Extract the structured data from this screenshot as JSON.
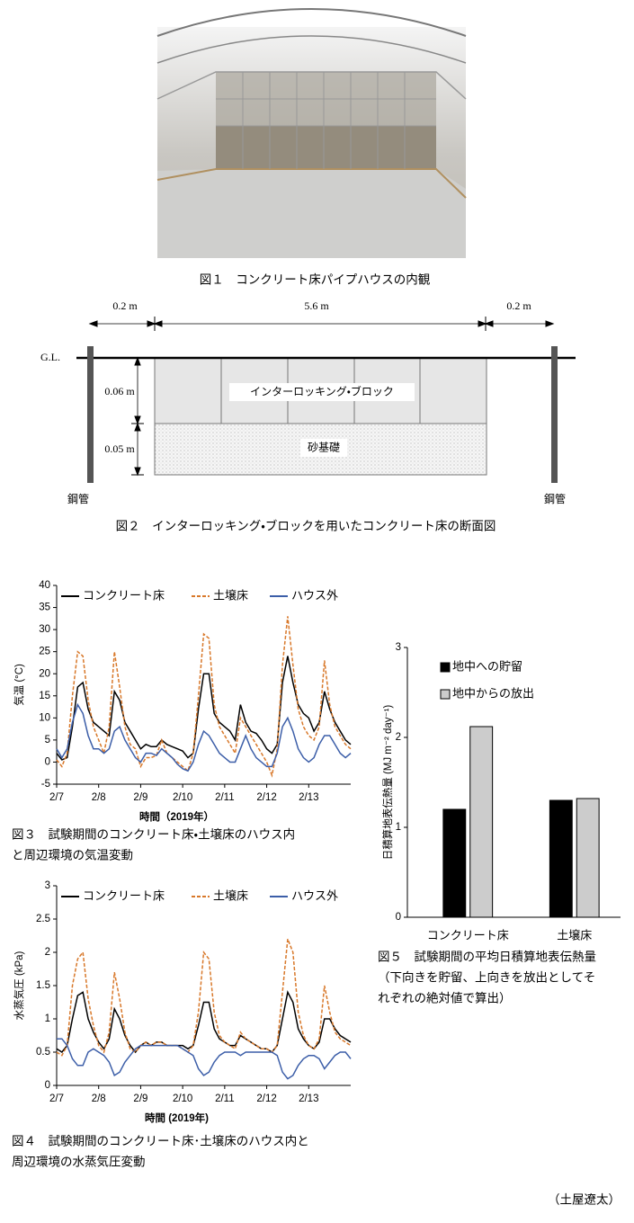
{
  "figure1": {
    "caption": "図１　コンクリート床パイプハウスの内観"
  },
  "figure2": {
    "dimensions": [
      "0.2 m",
      "5.6 m",
      "0.2 m"
    ],
    "ground_label": "G.L.",
    "depths": [
      "0.06 m",
      "0.05 m"
    ],
    "layers": [
      "インターロッキング・ブロック",
      "砂基礎"
    ],
    "pipes": [
      "鋼管",
      "鋼管"
    ],
    "caption": "図２　インターロッキング・ブロックを用いたコンクリート床の断面図"
  },
  "chart_data": [
    {
      "type": "line",
      "ylabel": "気温 (°C)",
      "xlabel": "時間（2019年）",
      "caption": [
        "図３　試験期間のコンクリート床・土壌床のハウス内",
        "と周辺環境の気温変動"
      ],
      "xlim": [
        0,
        7
      ],
      "xticks": [
        {
          "value": 0,
          "label": "2/7"
        },
        {
          "value": 1,
          "label": "2/8"
        },
        {
          "value": 2,
          "label": "2/9"
        },
        {
          "value": 3,
          "label": "2/10"
        },
        {
          "value": 4,
          "label": "2/11"
        },
        {
          "value": 5,
          "label": "2/12"
        },
        {
          "value": 6,
          "label": "2/13"
        }
      ],
      "ylim": [
        -5,
        40
      ],
      "yticks": [
        -5,
        0,
        5,
        10,
        15,
        20,
        25,
        30,
        35,
        40
      ],
      "x": [
        0,
        0.125,
        0.25,
        0.375,
        0.5,
        0.625,
        0.75,
        0.875,
        1,
        1.125,
        1.25,
        1.375,
        1.5,
        1.625,
        1.75,
        1.875,
        2,
        2.125,
        2.25,
        2.375,
        2.5,
        2.625,
        2.75,
        2.875,
        3,
        3.125,
        3.25,
        3.375,
        3.5,
        3.625,
        3.75,
        3.875,
        4,
        4.125,
        4.25,
        4.375,
        4.5,
        4.625,
        4.75,
        4.875,
        5,
        5.125,
        5.25,
        5.375,
        5.5,
        5.625,
        5.75,
        5.875,
        6,
        6.125,
        6.25,
        6.375,
        6.5,
        6.625,
        6.75,
        6.875,
        7
      ],
      "series": [
        {
          "name": "コンクリート床",
          "color": "#000000",
          "dashed": false,
          "values": [
            2,
            0.5,
            1,
            8,
            17,
            18,
            12,
            9,
            8,
            7,
            6,
            16,
            14,
            9,
            7,
            5,
            3,
            4,
            3.5,
            3.5,
            5,
            4,
            3.5,
            3,
            2.5,
            1,
            2,
            12,
            20,
            20,
            11,
            9,
            8,
            7,
            5,
            13,
            9,
            7,
            6.5,
            5,
            3,
            2,
            4,
            18,
            24,
            18,
            13,
            11,
            10,
            7,
            9,
            16,
            12,
            9,
            7,
            5,
            4
          ]
        },
        {
          "name": "土壌床",
          "color": "#d8782a",
          "dashed": true,
          "values": [
            0.5,
            -1,
            2,
            15,
            25,
            24,
            14,
            8,
            5,
            2,
            8,
            25,
            17,
            8,
            4,
            3,
            -1,
            1,
            1,
            1.5,
            5,
            2,
            1,
            0,
            -1,
            -2,
            2,
            15,
            29,
            28,
            13,
            8,
            6,
            4,
            2,
            10,
            8,
            6,
            4,
            2,
            0,
            -3,
            3,
            22,
            33,
            22,
            12,
            8,
            6,
            5,
            8,
            23,
            13,
            8,
            6,
            4,
            3
          ]
        },
        {
          "name": "ハウス外",
          "color": "#3c5ea8",
          "dashed": false,
          "values": [
            3,
            1,
            3,
            9,
            13,
            11,
            6,
            3,
            3,
            2,
            3,
            7,
            8,
            5,
            3,
            1,
            0,
            2,
            2,
            1.5,
            3,
            2,
            1,
            -0.5,
            -1.5,
            -2,
            0,
            4,
            7,
            6,
            4,
            2,
            1,
            0,
            0,
            3,
            6,
            3,
            1,
            0,
            -1,
            -1,
            2,
            8,
            10,
            7,
            3,
            1,
            0,
            1,
            4,
            6,
            6,
            4,
            2,
            1,
            2
          ]
        }
      ]
    },
    {
      "type": "line",
      "ylabel": "水蒸気圧 (kPa)",
      "xlabel": "時間 (2019年)",
      "caption": [
        "図４　試験期間のコンクリート床･土壌床のハウス内と",
        "周辺環境の水蒸気圧変動"
      ],
      "xlim": [
        0,
        7
      ],
      "xticks": [
        {
          "value": 0,
          "label": "2/7"
        },
        {
          "value": 1,
          "label": "2/8"
        },
        {
          "value": 2,
          "label": "2/9"
        },
        {
          "value": 3,
          "label": "2/10"
        },
        {
          "value": 4,
          "label": "2/11"
        },
        {
          "value": 5,
          "label": "2/12"
        },
        {
          "value": 6,
          "label": "2/13"
        }
      ],
      "ylim": [
        0,
        3
      ],
      "yticks": [
        0,
        0.5,
        1,
        1.5,
        2,
        2.5,
        3
      ],
      "x": [
        0,
        0.125,
        0.25,
        0.375,
        0.5,
        0.625,
        0.75,
        0.875,
        1,
        1.125,
        1.25,
        1.375,
        1.5,
        1.625,
        1.75,
        1.875,
        2,
        2.125,
        2.25,
        2.375,
        2.5,
        2.625,
        2.75,
        2.875,
        3,
        3.125,
        3.25,
        3.375,
        3.5,
        3.625,
        3.75,
        3.875,
        4,
        4.125,
        4.25,
        4.375,
        4.5,
        4.625,
        4.75,
        4.875,
        5,
        5.125,
        5.25,
        5.375,
        5.5,
        5.625,
        5.75,
        5.875,
        6,
        6.125,
        6.25,
        6.375,
        6.5,
        6.625,
        6.75,
        6.875,
        7
      ],
      "series": [
        {
          "name": "コンクリート床",
          "color": "#000000",
          "dashed": false,
          "values": [
            0.55,
            0.5,
            0.6,
            1.0,
            1.35,
            1.4,
            1.0,
            0.8,
            0.65,
            0.55,
            0.7,
            1.15,
            1.0,
            0.75,
            0.6,
            0.5,
            0.6,
            0.65,
            0.6,
            0.65,
            0.65,
            0.6,
            0.6,
            0.6,
            0.6,
            0.55,
            0.6,
            0.9,
            1.25,
            1.25,
            0.85,
            0.7,
            0.65,
            0.6,
            0.6,
            0.75,
            0.7,
            0.65,
            0.6,
            0.55,
            0.55,
            0.5,
            0.6,
            1.0,
            1.4,
            1.25,
            0.85,
            0.7,
            0.6,
            0.55,
            0.65,
            1.0,
            1.0,
            0.85,
            0.75,
            0.7,
            0.65
          ]
        },
        {
          "name": "土壌床",
          "color": "#d8782a",
          "dashed": true,
          "values": [
            0.5,
            0.45,
            0.6,
            1.5,
            1.9,
            2.0,
            1.3,
            0.9,
            0.6,
            0.5,
            0.8,
            1.7,
            1.3,
            0.8,
            0.55,
            0.5,
            0.6,
            0.65,
            0.6,
            0.65,
            0.65,
            0.6,
            0.6,
            0.6,
            0.55,
            0.5,
            0.6,
            1.1,
            2.0,
            1.9,
            1.1,
            0.75,
            0.65,
            0.6,
            0.55,
            0.8,
            0.7,
            0.65,
            0.6,
            0.55,
            0.55,
            0.5,
            0.6,
            1.4,
            2.2,
            2.0,
            1.1,
            0.75,
            0.6,
            0.55,
            0.7,
            1.5,
            1.1,
            0.8,
            0.7,
            0.65,
            0.6
          ]
        },
        {
          "name": "ハウス外",
          "color": "#3c5ea8",
          "dashed": false,
          "values": [
            0.7,
            0.7,
            0.6,
            0.4,
            0.3,
            0.3,
            0.5,
            0.55,
            0.5,
            0.45,
            0.35,
            0.15,
            0.2,
            0.35,
            0.45,
            0.55,
            0.6,
            0.6,
            0.6,
            0.6,
            0.6,
            0.6,
            0.6,
            0.6,
            0.55,
            0.5,
            0.45,
            0.25,
            0.15,
            0.2,
            0.35,
            0.45,
            0.5,
            0.5,
            0.5,
            0.45,
            0.5,
            0.5,
            0.5,
            0.5,
            0.5,
            0.5,
            0.45,
            0.2,
            0.1,
            0.15,
            0.3,
            0.4,
            0.45,
            0.45,
            0.4,
            0.25,
            0.35,
            0.45,
            0.5,
            0.5,
            0.4
          ]
        }
      ]
    },
    {
      "type": "bar",
      "ylabel": "日積算地表伝熱量 (MJ m⁻² day⁻¹)",
      "caption": [
        "図５　試験期間の平均日積算地表伝熱量",
        "（下向きを貯留、上向きを放出としてそ",
        "れぞれの絶対値で算出）"
      ],
      "categories": [
        "コンクリート床",
        "土壌床"
      ],
      "ylim": [
        0,
        3
      ],
      "yticks": [
        0,
        1,
        2,
        3
      ],
      "series": [
        {
          "name": "地中への貯留",
          "color": "#000000",
          "values": [
            1.2,
            1.3
          ]
        },
        {
          "name": "地中からの放出",
          "color": "#cccccc",
          "values": [
            2.12,
            1.32
          ]
        }
      ]
    }
  ],
  "author": "（土屋遼太）"
}
